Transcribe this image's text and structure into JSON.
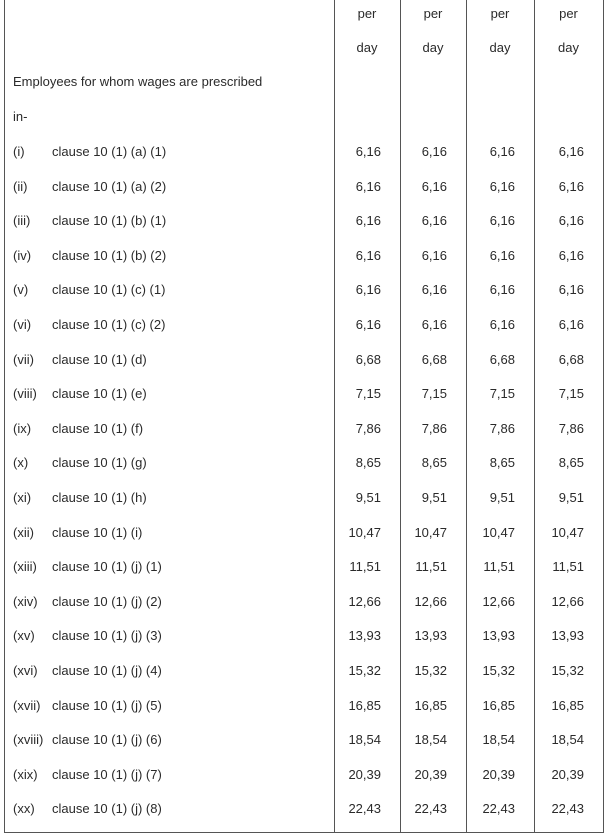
{
  "header": {
    "columns": [
      [
        "per",
        "day"
      ],
      [
        "per",
        "day"
      ],
      [
        "per",
        "day"
      ],
      [
        "per",
        "day"
      ]
    ],
    "intro": [
      "Employees for whom wages are prescribed",
      "in-"
    ]
  },
  "table": {
    "rows": [
      {
        "num": "(i)",
        "clause": "clause 10 (1) (a) (1)",
        "values": [
          "6,16",
          "6,16",
          "6,16",
          "6,16"
        ]
      },
      {
        "num": "(ii)",
        "clause": "clause 10 (1) (a) (2)",
        "values": [
          "6,16",
          "6,16",
          "6,16",
          "6,16"
        ]
      },
      {
        "num": "(iii)",
        "clause": "clause 10 (1) (b) (1)",
        "values": [
          "6,16",
          "6,16",
          "6,16",
          "6,16"
        ]
      },
      {
        "num": "(iv)",
        "clause": "clause 10 (1) (b) (2)",
        "values": [
          "6,16",
          "6,16",
          "6,16",
          "6,16"
        ]
      },
      {
        "num": "(v)",
        "clause": "clause 10 (1) (c) (1)",
        "values": [
          "6,16",
          "6,16",
          "6,16",
          "6,16"
        ]
      },
      {
        "num": "(vi)",
        "clause": "clause 10 (1) (c) (2)",
        "values": [
          "6,16",
          "6,16",
          "6,16",
          "6,16"
        ]
      },
      {
        "num": "(vii)",
        "clause": "clause 10 (1) (d)",
        "values": [
          "6,68",
          "6,68",
          "6,68",
          "6,68"
        ]
      },
      {
        "num": "(viii)",
        "clause": "clause 10 (1) (e)",
        "values": [
          "7,15",
          "7,15",
          "7,15",
          "7,15"
        ]
      },
      {
        "num": "(ix)",
        "clause": "clause 10 (1) (f)",
        "values": [
          "7,86",
          "7,86",
          "7,86",
          "7,86"
        ]
      },
      {
        "num": "(x)",
        "clause": "clause 10 (1) (g)",
        "values": [
          "8,65",
          "8,65",
          "8,65",
          "8,65"
        ]
      },
      {
        "num": "(xi)",
        "clause": "clause 10 (1) (h)",
        "values": [
          "9,51",
          "9,51",
          "9,51",
          "9,51"
        ]
      },
      {
        "num": "(xii)",
        "clause": "clause 10 (1) (i)",
        "values": [
          "10,47",
          "10,47",
          "10,47",
          "10,47"
        ]
      },
      {
        "num": "(xiii)",
        "clause": "clause 10 (1) (j) (1)",
        "values": [
          "11,51",
          "11,51",
          "11,51",
          "11,51"
        ]
      },
      {
        "num": "(xiv)",
        "clause": "clause 10 (1) (j) (2)",
        "values": [
          "12,66",
          "12,66",
          "12,66",
          "12,66"
        ]
      },
      {
        "num": "(xv)",
        "clause": "clause 10 (1) (j) (3)",
        "values": [
          "13,93",
          "13,93",
          "13,93",
          "13,93"
        ]
      },
      {
        "num": "(xvi)",
        "clause": "clause 10 (1) (j) (4)",
        "values": [
          "15,32",
          "15,32",
          "15,32",
          "15,32"
        ]
      },
      {
        "num": "(xvii)",
        "clause": "clause 10 (1) (j) (5)",
        "values": [
          "16,85",
          "16,85",
          "16,85",
          "16,85"
        ]
      },
      {
        "num": "(xviii)",
        "clause": "clause 10 (1) (j) (6)",
        "values": [
          "18,54",
          "18,54",
          "18,54",
          "18,54"
        ]
      },
      {
        "num": "(xix)",
        "clause": "clause 10 (1) (j) (7)",
        "values": [
          "20,39",
          "20,39",
          "20,39",
          "20,39"
        ]
      },
      {
        "num": "(xx)",
        "clause": "clause 10 (1) (j) (8)",
        "values": [
          "22,43",
          "22,43",
          "22,43",
          "22,43"
        ]
      }
    ]
  }
}
